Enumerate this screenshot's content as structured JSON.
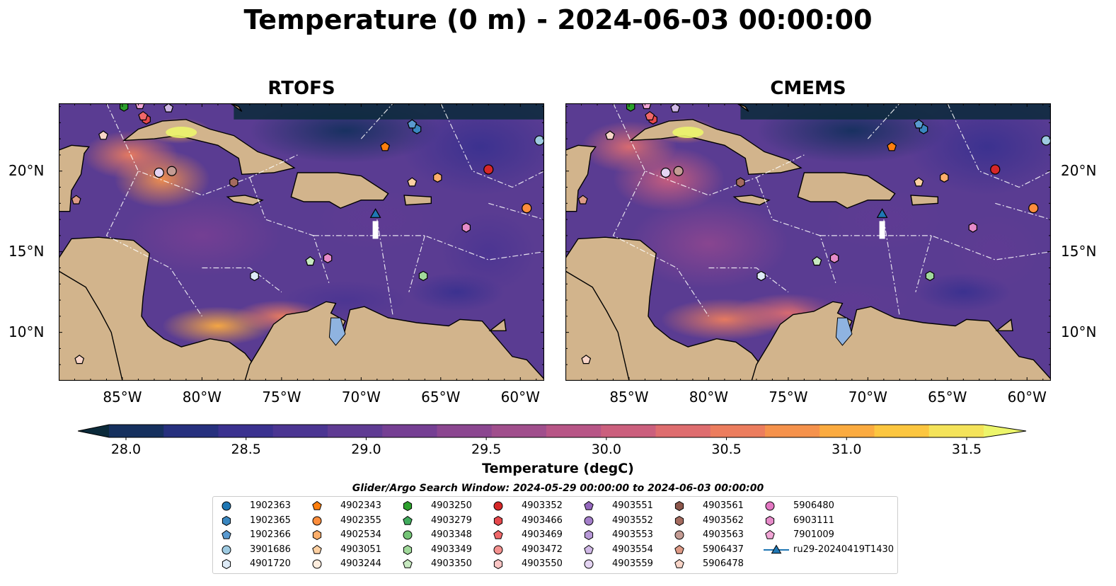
{
  "figure": {
    "title": "Temperature (0 m) - 2024-06-03 00:00:00",
    "search_window": "Glider/Argo Search Window: 2024-05-29 00:00:00 to 2024-06-03 00:00:00"
  },
  "panels": [
    {
      "title": "RTOFS"
    },
    {
      "title": "CMEMS"
    }
  ],
  "chart_data": {
    "type": "heatmap",
    "variable": "Temperature",
    "depth": "0 m",
    "xlim": [
      -89,
      -58.5
    ],
    "ylim": [
      7,
      24.2
    ],
    "x_ticks": [
      -85,
      -80,
      -75,
      -70,
      -65,
      -60
    ],
    "x_tick_labels": [
      "85°W",
      "80°W",
      "75°W",
      "70°W",
      "65°W",
      "60°W"
    ],
    "y_ticks": [
      10,
      15,
      20
    ],
    "y_tick_labels": [
      "10°N",
      "15°N",
      "20°N"
    ],
    "colorbar": {
      "label": "Temperature (degC)",
      "vmin": 28.0,
      "vmax": 31.5,
      "step": 0.25,
      "tick_values": [
        28.0,
        28.5,
        29.0,
        29.5,
        30.0,
        30.5,
        31.0,
        31.5
      ],
      "tick_labels": [
        "28.0",
        "28.5",
        "29.0",
        "29.5",
        "30.0",
        "30.5",
        "31.0",
        "31.5"
      ],
      "extend": "both",
      "colors": [
        "#0b2a3a",
        "#15305e",
        "#26307e",
        "#3a318f",
        "#4b3592",
        "#5f3b93",
        "#753f93",
        "#8b4690",
        "#a04e8c",
        "#b75586",
        "#cb5f7d",
        "#de6d6f",
        "#ec7d5e",
        "#f5924c",
        "#fbab40",
        "#fcc640",
        "#f4e35a",
        "#ecf56b"
      ]
    },
    "series": [
      {
        "name": "1902363",
        "marker": "circle",
        "color": "#1f77b4",
        "points": []
      },
      {
        "name": "1902365",
        "marker": "hexagon",
        "color": "#3a87c0",
        "points": [
          [
            -66.5,
            22.6
          ]
        ]
      },
      {
        "name": "1902366",
        "marker": "pentagon",
        "color": "#5a9ad0",
        "points": [
          [
            -66.8,
            22.9
          ]
        ]
      },
      {
        "name": "3901686",
        "marker": "circle",
        "color": "#9ecae1",
        "points": [
          [
            -58.8,
            21.9
          ]
        ]
      },
      {
        "name": "4901720",
        "marker": "hexagon",
        "color": "#deebf7",
        "points": [
          [
            -76.7,
            13.5
          ]
        ]
      },
      {
        "name": "4902343",
        "marker": "pentagon",
        "color": "#ff7f0e",
        "points": [
          [
            -68.5,
            21.5
          ]
        ]
      },
      {
        "name": "4902355",
        "marker": "circle",
        "color": "#fd8d3c",
        "points": [
          [
            -59.6,
            17.7
          ]
        ]
      },
      {
        "name": "4902534",
        "marker": "hexagon",
        "color": "#fdae6b",
        "points": [
          [
            -65.2,
            19.6
          ]
        ]
      },
      {
        "name": "4903051",
        "marker": "pentagon",
        "color": "#fdd0a2",
        "points": [
          [
            -66.8,
            19.3
          ]
        ]
      },
      {
        "name": "4903244",
        "marker": "circle",
        "color": "#feedde",
        "points": []
      },
      {
        "name": "4903250",
        "marker": "hexagon",
        "color": "#2ca02c",
        "points": [
          [
            -84.9,
            24.0
          ]
        ]
      },
      {
        "name": "4903279",
        "marker": "pentagon",
        "color": "#41ab5d",
        "points": []
      },
      {
        "name": "4903348",
        "marker": "circle",
        "color": "#74c476",
        "points": []
      },
      {
        "name": "4903349",
        "marker": "hexagon",
        "color": "#a1d99b",
        "points": [
          [
            -66.1,
            13.5
          ]
        ]
      },
      {
        "name": "4903350",
        "marker": "pentagon",
        "color": "#c7e9c0",
        "points": [
          [
            -73.2,
            14.4
          ]
        ]
      },
      {
        "name": "4903352",
        "marker": "circle",
        "color": "#d62728",
        "points": [
          [
            -62.0,
            20.1
          ]
        ]
      },
      {
        "name": "4903466",
        "marker": "hexagon",
        "color": "#e6484c",
        "points": [
          [
            -83.5,
            23.2
          ]
        ]
      },
      {
        "name": "4903469",
        "marker": "pentagon",
        "color": "#f0686a",
        "points": [
          [
            -83.7,
            23.4
          ]
        ]
      },
      {
        "name": "4903472",
        "marker": "circle",
        "color": "#f4918f",
        "points": []
      },
      {
        "name": "4903550",
        "marker": "hexagon",
        "color": "#fbc5c4",
        "points": []
      },
      {
        "name": "4903551",
        "marker": "pentagon",
        "color": "#9467bd",
        "points": []
      },
      {
        "name": "4903552",
        "marker": "circle",
        "color": "#a47fca",
        "points": []
      },
      {
        "name": "4903553",
        "marker": "hexagon",
        "color": "#b899d8",
        "points": []
      },
      {
        "name": "4903554",
        "marker": "pentagon",
        "color": "#d0b8e6",
        "points": [
          [
            -82.1,
            23.9
          ]
        ]
      },
      {
        "name": "4903559",
        "marker": "circle",
        "color": "#e4d4f2",
        "points": [
          [
            -82.7,
            19.9
          ]
        ]
      },
      {
        "name": "4903561",
        "marker": "hexagon",
        "color": "#8c564b",
        "points": []
      },
      {
        "name": "4903562",
        "marker": "hexagon",
        "color": "#a46b5f",
        "points": [
          [
            -78.0,
            19.3
          ]
        ]
      },
      {
        "name": "4903563",
        "marker": "circle",
        "color": "#c49c94",
        "points": [
          [
            -81.9,
            20.0
          ]
        ]
      },
      {
        "name": "5906437",
        "marker": "pentagon",
        "color": "#dd9a86",
        "points": [
          [
            -87.9,
            18.2
          ]
        ]
      },
      {
        "name": "5906478",
        "marker": "pentagon",
        "color": "#f8d5c8",
        "points": [
          [
            -86.2,
            22.2
          ],
          [
            -87.7,
            8.3
          ]
        ]
      },
      {
        "name": "5906480",
        "marker": "circle",
        "color": "#e377c2",
        "points": []
      },
      {
        "name": "6903111",
        "marker": "hexagon",
        "color": "#e68bc9",
        "points": [
          [
            -72.1,
            14.6
          ],
          [
            -63.4,
            16.5
          ]
        ]
      },
      {
        "name": "7901009",
        "marker": "pentagon",
        "color": "#f2a6d6",
        "points": [
          [
            -83.9,
            24.1
          ]
        ]
      },
      {
        "name": "ru29-20240419T1430",
        "marker": "triangle",
        "color": "#1f77b4",
        "points": [
          [
            -69.1,
            17.3
          ]
        ]
      }
    ]
  }
}
